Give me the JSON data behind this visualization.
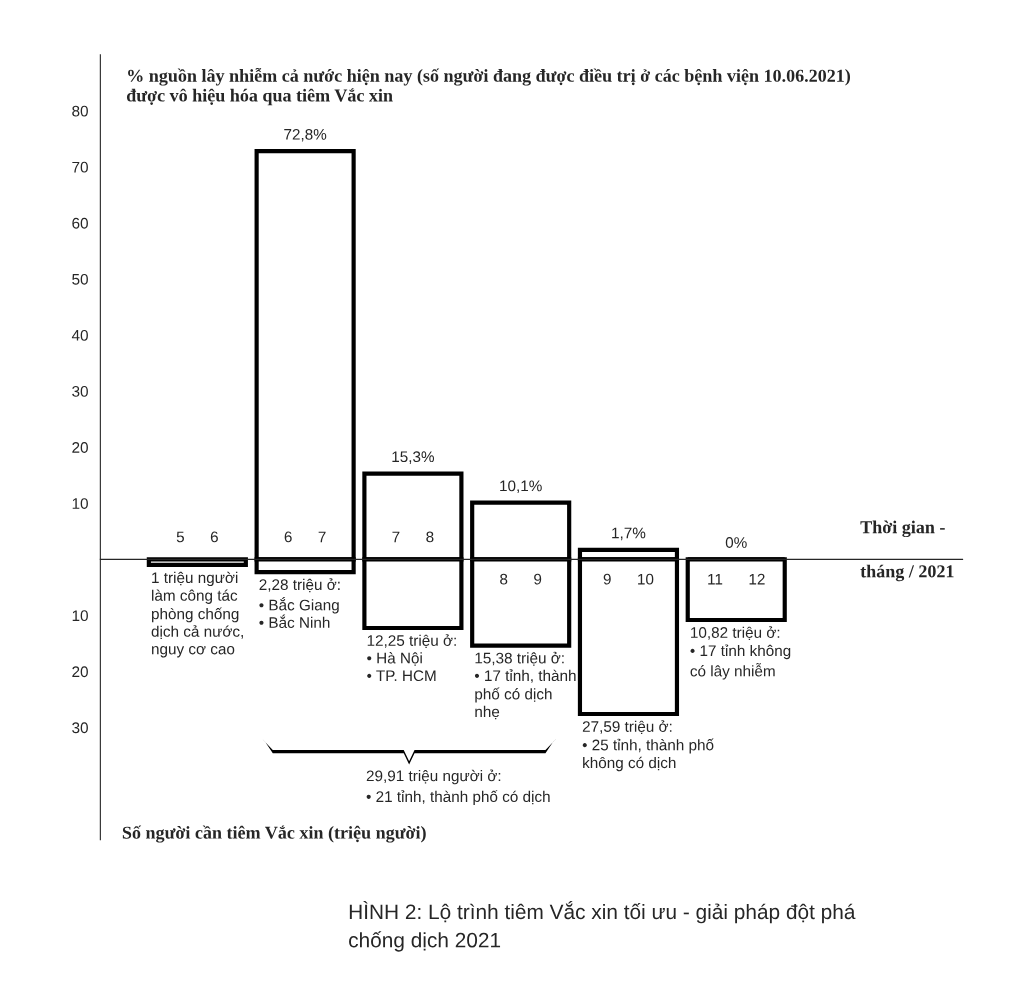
{
  "chart_data": {
    "type": "bar",
    "title": "% nguồn lây nhiễm cả nước hiện nay (số người đang được điều trị ở các bệnh viện 10.06.2021)\nđược vô hiệu hóa qua tiêm Vắc xin",
    "xlabel": "Thời gian -\ntháng / 2021",
    "ylabel": "Số người cần tiêm Vắc xin (triệu người)",
    "categories": [
      "5      6",
      "6      7",
      "7      8",
      "8      9",
      "9      10",
      "11      12"
    ],
    "stacked": true,
    "series": [
      {
        "color": "#000000",
        "values": [
          null,
          72.8,
          15.3,
          10.1,
          1.7,
          0
        ],
        "value_labels": [
          null,
          "72,8%",
          "15,3%",
          "10,1%",
          "1,7%",
          "0%"
        ]
      },
      {
        "color": "#000000",
        "values": [
          -1,
          -2.28,
          -12.25,
          -15.38,
          -27.59,
          -10.82
        ]
      }
    ],
    "ylim": [
      -50,
      90
    ],
    "yticks": [
      {
        "value": -30,
        "label": "30"
      },
      {
        "value": -20,
        "label": "20"
      },
      {
        "value": -10,
        "label": "10"
      },
      10,
      20,
      30,
      40,
      50,
      60,
      70,
      80
    ],
    "grid": false,
    "legend": false,
    "annotations": [
      {
        "text": "1 triệu người\nlàm công tác\nphòng chống\ndịch cả nước,\nnguy cơ cao",
        "x": "5      6",
        "y": -1
      },
      {
        "text": "2,28 triệu ở:\n• Bắc Giang\n• Bắc Ninh",
        "x": "6      7",
        "y": -2.28
      },
      {
        "text": "12,25 triệu ở:\n• Hà Nội\n• TP. HCM",
        "x": "7      8",
        "y": -12.25
      },
      {
        "text": "15,38 triệu ở:\n• 17 tỉnh, thành\nphố có dịch\nnhẹ",
        "x": "8      9",
        "y": -15.38
      },
      {
        "text": "27,59 triệu ở:\n• 25 tỉnh, thành phố\nkhông có dịch",
        "x": "9      10",
        "y": -27.59
      },
      {
        "text": "10,82 triệu ở:\n• 17 tỉnh không\ncó lây nhiễm",
        "x": "11      12",
        "y": -10.82
      },
      "29,91 triệu người ở:\n• 21 tỉnh, thành phố có dịch",
      "HÌNH 2: Lộ trình tiêm Vắc xin tối ưu - giải pháp đột phá\nchống dịch 2021"
    ]
  }
}
